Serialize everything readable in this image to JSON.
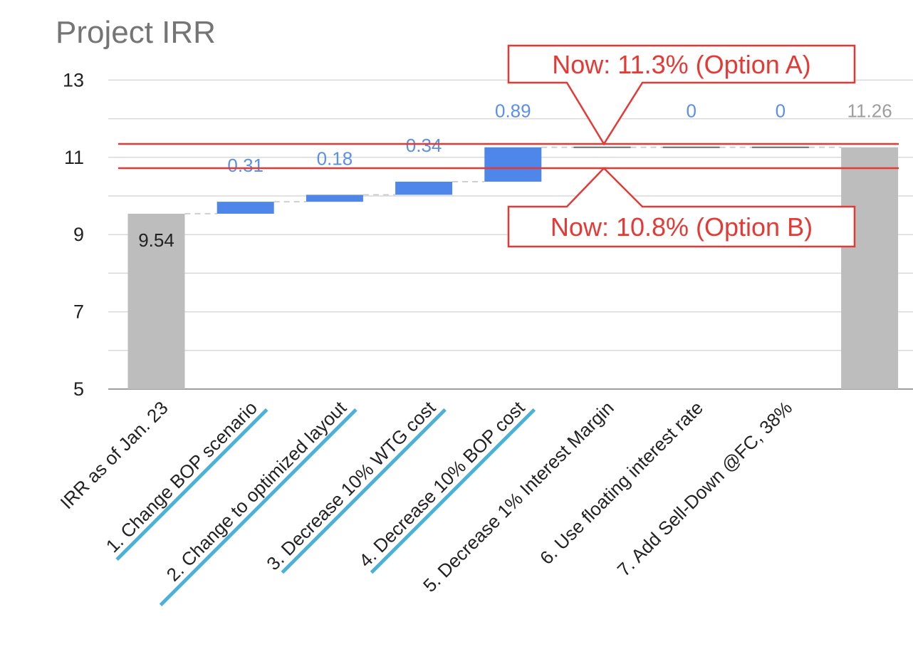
{
  "chart_data": {
    "type": "waterfall",
    "title": "Project IRR",
    "xlabel": "",
    "ylabel": "",
    "ylim": [
      5,
      13.7
    ],
    "yticks": [
      5,
      7,
      9,
      11,
      13
    ],
    "grid": true,
    "legend": "none",
    "categories": [
      "IRR as of Jan. 23",
      "1. Change BOP scenario",
      "2. Change to optimized layout",
      "3. Decrease 10% WTG cost",
      "4. Decrease 10% BOP cost",
      "5. Decrease 1% Interest Margin",
      "6. Use floating interest rate",
      "7. Add Sell-Down @FC, 38%",
      ""
    ],
    "steps": [
      {
        "kind": "total",
        "value": 9.54,
        "label": "9.54"
      },
      {
        "kind": "delta",
        "value": 0.31,
        "label": "0.31"
      },
      {
        "kind": "delta",
        "value": 0.18,
        "label": "0.18"
      },
      {
        "kind": "delta",
        "value": 0.34,
        "label": "0.34"
      },
      {
        "kind": "delta",
        "value": 0.89,
        "label": "0.89"
      },
      {
        "kind": "delta",
        "value": 0,
        "label": ""
      },
      {
        "kind": "delta",
        "value": 0,
        "label": "0"
      },
      {
        "kind": "delta",
        "value": 0,
        "label": "0"
      },
      {
        "kind": "total",
        "value": 11.26,
        "label": "11.26"
      }
    ],
    "underlined_categories": [
      1,
      2,
      3,
      4
    ],
    "reference_lines": [
      {
        "value": 11.3,
        "label": "Now: 11.3% (Option A)",
        "callout": "above"
      },
      {
        "value": 10.8,
        "label": "Now: 10.8% (Option B)",
        "callout": "below"
      }
    ],
    "colors": {
      "total": "#bdbdbd",
      "increase": "#4e86ea",
      "increase_label": "#5b8fe8",
      "total_label": "#222222",
      "end_total_label": "#9e9e9e",
      "zero_step": "#6b6b6b",
      "reference": "#e53935",
      "underline": "#4cb0d8",
      "grid": "#d9d9d9",
      "title": "#757575"
    }
  }
}
